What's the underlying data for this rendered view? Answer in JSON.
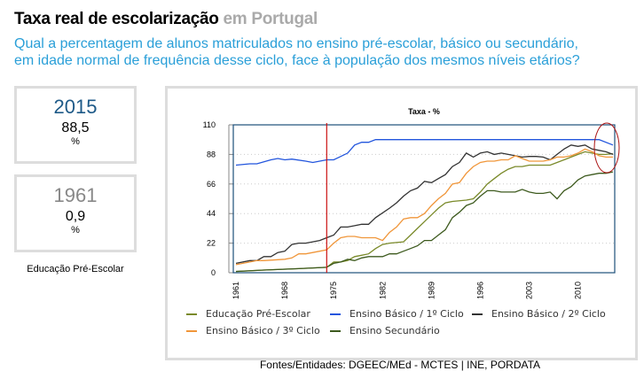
{
  "header": {
    "title": "Taxa real de escolarização",
    "title_suffix": "em Portugal",
    "question_line1": "Qual a percentagem de alunos matriculados no ensino pré-escolar, básico ou secundário,",
    "question_line2": "em idade normal de frequência desse ciclo, face à população dos mesmos níveis etários?"
  },
  "kpis": [
    {
      "year": "2015",
      "value": "88,5",
      "unit": "%"
    },
    {
      "year": "1961",
      "value": "0,9",
      "unit": "%"
    }
  ],
  "kpi_label": "Educação Pré-Escolar",
  "source": "Fontes/Entidades: DGEEC/MEd - MCTES | INE, PORDATA",
  "chart_data": {
    "type": "line",
    "title": "Taxa - %",
    "ylim": [
      0,
      110
    ],
    "xlim": [
      1961,
      2015
    ],
    "yticks": [
      "0",
      "22",
      "44",
      "66",
      "88",
      "110"
    ],
    "xticks": [
      "1961",
      "1968",
      "1975",
      "1982",
      "1989",
      "1996",
      "2003",
      "2010"
    ],
    "grid": true,
    "legend": "bottom",
    "marker_year": 1974,
    "series": [
      {
        "name": "Educação Pré-Escolar",
        "color": "#7a8a2a",
        "points": [
          [
            1961,
            0.9
          ],
          [
            1965,
            2
          ],
          [
            1970,
            3
          ],
          [
            1974,
            4
          ],
          [
            1975,
            8
          ],
          [
            1976,
            8
          ],
          [
            1977,
            9
          ],
          [
            1978,
            12
          ],
          [
            1979,
            13
          ],
          [
            1980,
            14
          ],
          [
            1981,
            18
          ],
          [
            1982,
            21
          ],
          [
            1983,
            22
          ],
          [
            1985,
            23
          ],
          [
            1986,
            28
          ],
          [
            1987,
            33
          ],
          [
            1988,
            38
          ],
          [
            1989,
            43
          ],
          [
            1990,
            48
          ],
          [
            1991,
            52
          ],
          [
            1992,
            53
          ],
          [
            1994,
            54
          ],
          [
            1995,
            55
          ],
          [
            1996,
            60
          ],
          [
            1997,
            66
          ],
          [
            1998,
            70
          ],
          [
            1999,
            74
          ],
          [
            2000,
            77
          ],
          [
            2001,
            79
          ],
          [
            2002,
            79
          ],
          [
            2003,
            80
          ],
          [
            2006,
            80
          ],
          [
            2007,
            82
          ],
          [
            2008,
            84
          ],
          [
            2009,
            86
          ],
          [
            2010,
            88
          ],
          [
            2011,
            90
          ],
          [
            2012,
            89
          ],
          [
            2013,
            88
          ],
          [
            2014,
            88
          ],
          [
            2015,
            88.5
          ]
        ]
      },
      {
        "name": "Ensino Básico / 1º Ciclo",
        "color": "#2255dd",
        "points": [
          [
            1961,
            80
          ],
          [
            1963,
            81
          ],
          [
            1964,
            81
          ],
          [
            1966,
            84
          ],
          [
            1967,
            85
          ],
          [
            1968,
            84
          ],
          [
            1969,
            84.5
          ],
          [
            1971,
            83
          ],
          [
            1972,
            82
          ],
          [
            1974,
            84
          ],
          [
            1975,
            84
          ],
          [
            1977,
            89
          ],
          [
            1978,
            95
          ],
          [
            1979,
            97
          ],
          [
            1980,
            97
          ],
          [
            1981,
            99
          ],
          [
            2013,
            99
          ],
          [
            2015,
            95
          ]
        ]
      },
      {
        "name": "Ensino Básico / 2º Ciclo",
        "color": "#333333",
        "points": [
          [
            1961,
            7
          ],
          [
            1963,
            9
          ],
          [
            1964,
            9
          ],
          [
            1965,
            12
          ],
          [
            1966,
            12
          ],
          [
            1967,
            15
          ],
          [
            1968,
            16
          ],
          [
            1969,
            21
          ],
          [
            1970,
            22
          ],
          [
            1971,
            22
          ],
          [
            1973,
            24
          ],
          [
            1974,
            26
          ],
          [
            1975,
            28
          ],
          [
            1976,
            34
          ],
          [
            1977,
            34
          ],
          [
            1978,
            35
          ],
          [
            1979,
            36
          ],
          [
            1980,
            36
          ],
          [
            1981,
            41
          ],
          [
            1983,
            48
          ],
          [
            1984,
            52
          ],
          [
            1985,
            57
          ],
          [
            1986,
            61
          ],
          [
            1987,
            63
          ],
          [
            1988,
            68
          ],
          [
            1989,
            67
          ],
          [
            1990,
            70
          ],
          [
            1991,
            73
          ],
          [
            1992,
            79
          ],
          [
            1993,
            82
          ],
          [
            1994,
            89
          ],
          [
            1995,
            86
          ],
          [
            1996,
            89
          ],
          [
            1997,
            90
          ],
          [
            1998,
            88
          ],
          [
            1999,
            89
          ],
          [
            2000,
            88
          ],
          [
            2001,
            87
          ],
          [
            2002,
            86
          ],
          [
            2003,
            86.5
          ],
          [
            2004,
            86.5
          ],
          [
            2005,
            86
          ],
          [
            2006,
            84
          ],
          [
            2007,
            88
          ],
          [
            2008,
            92
          ],
          [
            2009,
            95
          ],
          [
            2010,
            94
          ],
          [
            2011,
            95
          ],
          [
            2012,
            92
          ],
          [
            2013,
            91
          ],
          [
            2014,
            90
          ],
          [
            2015,
            88
          ]
        ]
      },
      {
        "name": "Ensino Básico / 3º Ciclo",
        "color": "#f0963a",
        "points": [
          [
            1961,
            6
          ],
          [
            1963,
            8
          ],
          [
            1964,
            9
          ],
          [
            1965,
            9
          ],
          [
            1968,
            10
          ],
          [
            1969,
            11
          ],
          [
            1970,
            14
          ],
          [
            1971,
            14
          ],
          [
            1972,
            15
          ],
          [
            1973,
            16
          ],
          [
            1974,
            17
          ],
          [
            1975,
            22
          ],
          [
            1976,
            26
          ],
          [
            1977,
            27
          ],
          [
            1978,
            27
          ],
          [
            1979,
            26
          ],
          [
            1981,
            26
          ],
          [
            1982,
            24
          ],
          [
            1983,
            30
          ],
          [
            1984,
            34
          ],
          [
            1985,
            40
          ],
          [
            1986,
            41
          ],
          [
            1987,
            41
          ],
          [
            1988,
            44
          ],
          [
            1989,
            50
          ],
          [
            1990,
            55
          ],
          [
            1991,
            59
          ],
          [
            1992,
            66
          ],
          [
            1993,
            67
          ],
          [
            1994,
            74
          ],
          [
            1995,
            79
          ],
          [
            1996,
            82
          ],
          [
            1997,
            83
          ],
          [
            1998,
            83
          ],
          [
            1999,
            84
          ],
          [
            2000,
            84
          ],
          [
            2001,
            87
          ],
          [
            2002,
            85
          ],
          [
            2003,
            83
          ],
          [
            2005,
            83
          ],
          [
            2006,
            84
          ],
          [
            2007,
            86
          ],
          [
            2008,
            86
          ],
          [
            2009,
            87
          ],
          [
            2010,
            89
          ],
          [
            2011,
            92
          ],
          [
            2012,
            90
          ],
          [
            2013,
            87
          ],
          [
            2014,
            86
          ],
          [
            2015,
            86
          ]
        ]
      },
      {
        "name": "Ensino Secundário",
        "color": "#3d5a1e",
        "points": [
          [
            1961,
            1
          ],
          [
            1965,
            2
          ],
          [
            1970,
            3
          ],
          [
            1974,
            4
          ],
          [
            1975,
            7
          ],
          [
            1976,
            8
          ],
          [
            1977,
            10
          ],
          [
            1978,
            9
          ],
          [
            1979,
            11
          ],
          [
            1980,
            12
          ],
          [
            1982,
            12
          ],
          [
            1983,
            14
          ],
          [
            1984,
            14
          ],
          [
            1985,
            16
          ],
          [
            1986,
            18
          ],
          [
            1987,
            20
          ],
          [
            1988,
            24
          ],
          [
            1989,
            24
          ],
          [
            1990,
            28
          ],
          [
            1991,
            32
          ],
          [
            1992,
            41
          ],
          [
            1993,
            45
          ],
          [
            1994,
            50
          ],
          [
            1995,
            52
          ],
          [
            1996,
            57
          ],
          [
            1997,
            61
          ],
          [
            1998,
            61
          ],
          [
            1999,
            60
          ],
          [
            2001,
            60
          ],
          [
            2002,
            62
          ],
          [
            2003,
            60
          ],
          [
            2004,
            59
          ],
          [
            2005,
            59
          ],
          [
            2006,
            60
          ],
          [
            2007,
            55
          ],
          [
            2008,
            61
          ],
          [
            2009,
            64
          ],
          [
            2010,
            69
          ],
          [
            2011,
            72
          ],
          [
            2012,
            73
          ],
          [
            2013,
            74
          ],
          [
            2014,
            74
          ],
          [
            2015,
            75
          ]
        ]
      }
    ]
  }
}
